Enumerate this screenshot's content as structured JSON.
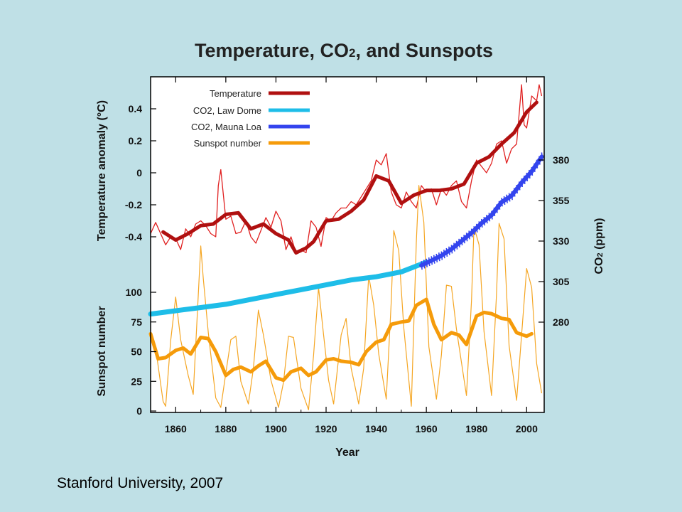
{
  "chart_data": {
    "type": "line",
    "title": "Temperature, CO",
    "title_sub": "2",
    "title_rest": ", and Sunspots",
    "xlabel": "Year",
    "xlim": [
      1850,
      2007
    ],
    "x_ticks": [
      "1860",
      "1880",
      "1900",
      "1920",
      "1940",
      "1960",
      "1980",
      "2000"
    ],
    "y_left_top": {
      "label": "Temperature anomaly (°C)",
      "ticks": [
        "0.4",
        "0.2",
        "0",
        "-0.2",
        "-0.4"
      ],
      "tick_values": [
        0.4,
        0.2,
        0,
        -0.2,
        -0.4
      ]
    },
    "y_left_bottom": {
      "label": "Sunspot number",
      "ticks": [
        "100",
        "75",
        "50",
        "25",
        "0"
      ],
      "tick_values": [
        100,
        75,
        50,
        25,
        0
      ]
    },
    "y_right": {
      "label": "CO",
      "label_sub": "2",
      "label_rest": " (ppm)",
      "ticks": [
        "380",
        "355",
        "330",
        "305",
        "280"
      ],
      "tick_values": [
        380,
        355,
        330,
        305,
        280
      ]
    },
    "legend_position": "top-left",
    "series": [
      {
        "name": "Temperature",
        "color": "#b01010",
        "axis": "temperature",
        "x": [
          1855,
          1860,
          1865,
          1870,
          1875,
          1880,
          1885,
          1890,
          1895,
          1900,
          1905,
          1908,
          1912,
          1915,
          1920,
          1925,
          1930,
          1935,
          1940,
          1945,
          1950,
          1955,
          1960,
          1965,
          1970,
          1975,
          1980,
          1985,
          1990,
          1995,
          2000,
          2004
        ],
        "y": [
          -0.37,
          -0.42,
          -0.38,
          -0.33,
          -0.32,
          -0.26,
          -0.25,
          -0.35,
          -0.32,
          -0.38,
          -0.42,
          -0.5,
          -0.47,
          -0.43,
          -0.3,
          -0.29,
          -0.24,
          -0.17,
          -0.02,
          -0.05,
          -0.19,
          -0.14,
          -0.11,
          -0.11,
          -0.1,
          -0.07,
          0.06,
          0.1,
          0.18,
          0.25,
          0.38,
          0.44
        ]
      },
      {
        "name": "CO2, Law Dome",
        "color": "#1ebde8",
        "axis": "co2",
        "x": [
          1850,
          1860,
          1870,
          1880,
          1890,
          1900,
          1910,
          1920,
          1930,
          1940,
          1950,
          1955,
          1960
        ],
        "y": [
          285,
          287,
          289,
          291,
          294,
          297,
          300,
          303,
          306,
          308,
          311,
          314,
          317
        ]
      },
      {
        "name": "CO2, Mauna Loa",
        "color": "#3344ee",
        "axis": "co2",
        "x": [
          1958,
          1962,
          1966,
          1970,
          1974,
          1978,
          1982,
          1986,
          1990,
          1994,
          1998,
          2002,
          2006
        ],
        "y": [
          315,
          318,
          321,
          325,
          330,
          335,
          341,
          346,
          354,
          358,
          366,
          373,
          382
        ]
      },
      {
        "name": "Sunspot number",
        "color": "#f59b0a",
        "axis": "sunspot",
        "x": [
          1850,
          1853,
          1856,
          1860,
          1863,
          1866,
          1870,
          1873,
          1876,
          1880,
          1883,
          1886,
          1890,
          1893,
          1896,
          1900,
          1903,
          1906,
          1910,
          1913,
          1916,
          1920,
          1923,
          1926,
          1930,
          1933,
          1936,
          1940,
          1943,
          1946,
          1950,
          1953,
          1956,
          1960,
          1963,
          1966,
          1970,
          1973,
          1976,
          1980,
          1983,
          1986,
          1990,
          1993,
          1996,
          2000,
          2002
        ],
        "y": [
          65,
          44,
          45,
          51,
          53,
          48,
          62,
          61,
          50,
          30,
          35,
          37,
          33,
          38,
          42,
          28,
          26,
          33,
          36,
          30,
          33,
          43,
          44,
          42,
          41,
          39,
          50,
          58,
          60,
          73,
          75,
          76,
          89,
          94,
          73,
          60,
          66,
          64,
          56,
          80,
          83,
          82,
          78,
          77,
          66,
          63,
          65
        ]
      }
    ],
    "annual_series": {
      "temperature_years": [
        1850,
        1852,
        1854,
        1856,
        1858,
        1860,
        1862,
        1864,
        1866,
        1868,
        1870,
        1872,
        1874,
        1876,
        1877,
        1878,
        1880,
        1882,
        1884,
        1886,
        1888,
        1890,
        1892,
        1894,
        1896,
        1898,
        1900,
        1902,
        1904,
        1906,
        1908,
        1910,
        1912,
        1914,
        1916,
        1918,
        1920,
        1922,
        1924,
        1926,
        1928,
        1930,
        1932,
        1934,
        1936,
        1938,
        1940,
        1942,
        1944,
        1946,
        1948,
        1950,
        1952,
        1954,
        1956,
        1958,
        1960,
        1962,
        1964,
        1966,
        1968,
        1970,
        1972,
        1974,
        1976,
        1978,
        1980,
        1982,
        1984,
        1986,
        1988,
        1990,
        1992,
        1994,
        1996,
        1998,
        1999,
        2000,
        2002,
        2004,
        2005,
        2006
      ],
      "temperature_values": [
        -0.38,
        -0.31,
        -0.38,
        -0.45,
        -0.4,
        -0.41,
        -0.48,
        -0.35,
        -0.4,
        -0.32,
        -0.3,
        -0.33,
        -0.38,
        -0.4,
        -0.08,
        0.02,
        -0.29,
        -0.27,
        -0.38,
        -0.37,
        -0.3,
        -0.4,
        -0.44,
        -0.36,
        -0.28,
        -0.34,
        -0.24,
        -0.3,
        -0.48,
        -0.4,
        -0.5,
        -0.48,
        -0.5,
        -0.3,
        -0.34,
        -0.46,
        -0.28,
        -0.3,
        -0.25,
        -0.22,
        -0.22,
        -0.18,
        -0.2,
        -0.15,
        -0.1,
        -0.05,
        0.08,
        0.05,
        0.12,
        -0.12,
        -0.2,
        -0.22,
        -0.12,
        -0.18,
        -0.22,
        -0.08,
        -0.12,
        -0.1,
        -0.2,
        -0.1,
        -0.14,
        -0.08,
        -0.05,
        -0.18,
        -0.22,
        -0.05,
        0.08,
        0.04,
        0.0,
        0.06,
        0.18,
        0.2,
        0.06,
        0.15,
        0.18,
        0.55,
        0.3,
        0.28,
        0.48,
        0.45,
        0.55,
        0.48
      ],
      "sunspot_years": [
        1850,
        1852,
        1855,
        1856,
        1858,
        1860,
        1862,
        1865,
        1867,
        1870,
        1871,
        1873,
        1876,
        1878,
        1880,
        1882,
        1884,
        1886,
        1889,
        1891,
        1893,
        1895,
        1898,
        1901,
        1903,
        1905,
        1907,
        1910,
        1913,
        1915,
        1917,
        1919,
        1921,
        1923,
        1926,
        1928,
        1930,
        1933,
        1935,
        1937,
        1939,
        1941,
        1944,
        1946,
        1947,
        1949,
        1951,
        1954,
        1956,
        1957,
        1959,
        1961,
        1964,
        1966,
        1968,
        1970,
        1972,
        1976,
        1978,
        1979,
        1981,
        1983,
        1986,
        1988,
        1989,
        1991,
        1993,
        1996,
        1998,
        2000,
        2002,
        2004,
        2006
      ],
      "sunspot_values": [
        66,
        53,
        8,
        4,
        59,
        96,
        60,
        30,
        14,
        139,
        112,
        66,
        11,
        3,
        32,
        60,
        63,
        25,
        6,
        36,
        85,
        64,
        26,
        3,
        24,
        63,
        62,
        19,
        1,
        47,
        104,
        64,
        26,
        6,
        64,
        78,
        36,
        6,
        36,
        114,
        89,
        48,
        10,
        93,
        152,
        135,
        70,
        4,
        142,
        190,
        159,
        54,
        10,
        47,
        106,
        105,
        69,
        13,
        93,
        155,
        140,
        67,
        13,
        100,
        158,
        145,
        55,
        9,
        64,
        120,
        104,
        40,
        15
      ]
    },
    "temperature_ylim": [
      -0.55,
      0.55
    ],
    "sunspot_ylim": [
      0,
      100
    ],
    "co2_ylim": [
      280,
      380
    ]
  },
  "footer": {
    "credit": "Stanford University, 2007"
  }
}
